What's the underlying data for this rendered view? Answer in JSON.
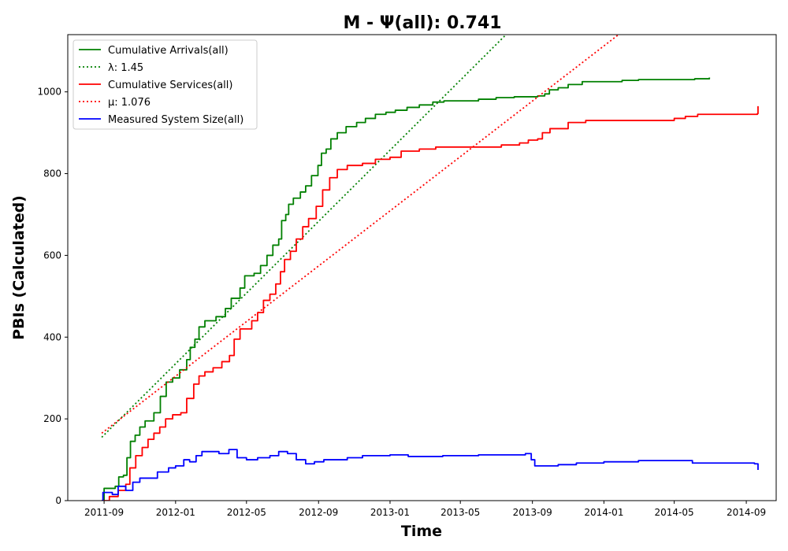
{
  "chart_data": {
    "type": "line",
    "title": "M -  Ψ(all): 0.741",
    "xlabel": "Time",
    "ylabel": "PBIs (Calculated)",
    "x_axis_type": "date",
    "xlim": [
      "2011-07-01",
      "2014-10-22"
    ],
    "ylim": [
      0,
      1140
    ],
    "x_ticks": [
      "2011-09",
      "2012-01",
      "2012-05",
      "2012-09",
      "2013-01",
      "2013-05",
      "2013-09",
      "2014-01",
      "2014-05",
      "2014-09"
    ],
    "x_tick_dates": [
      "2011-09-01",
      "2012-01-01",
      "2012-05-01",
      "2012-09-01",
      "2013-01-01",
      "2013-05-01",
      "2013-09-01",
      "2014-01-01",
      "2014-05-01",
      "2014-09-01"
    ],
    "y_ticks": [
      0,
      200,
      400,
      600,
      800,
      1000
    ],
    "grid": false,
    "legend_position": "top-left",
    "series": [
      {
        "name": "Cumulative Arrivals(all)",
        "color": "#008000",
        "style": "solid",
        "points": [
          [
            "2011-08-28",
            0
          ],
          [
            "2011-09-01",
            30
          ],
          [
            "2011-09-20",
            35
          ],
          [
            "2011-09-26",
            58
          ],
          [
            "2011-10-04",
            62
          ],
          [
            "2011-10-10",
            105
          ],
          [
            "2011-10-16",
            145
          ],
          [
            "2011-10-24",
            160
          ],
          [
            "2011-11-01",
            180
          ],
          [
            "2011-11-10",
            195
          ],
          [
            "2011-11-25",
            215
          ],
          [
            "2011-12-06",
            255
          ],
          [
            "2011-12-16",
            290
          ],
          [
            "2011-12-27",
            300
          ],
          [
            "2012-01-08",
            320
          ],
          [
            "2012-01-20",
            345
          ],
          [
            "2012-01-26",
            375
          ],
          [
            "2012-02-03",
            395
          ],
          [
            "2012-02-10",
            425
          ],
          [
            "2012-02-20",
            440
          ],
          [
            "2012-03-10",
            450
          ],
          [
            "2012-03-26",
            470
          ],
          [
            "2012-04-05",
            495
          ],
          [
            "2012-04-20",
            520
          ],
          [
            "2012-04-28",
            550
          ],
          [
            "2012-05-14",
            556
          ],
          [
            "2012-05-25",
            575
          ],
          [
            "2012-06-05",
            600
          ],
          [
            "2012-06-15",
            625
          ],
          [
            "2012-06-25",
            640
          ],
          [
            "2012-06-30",
            685
          ],
          [
            "2012-07-07",
            700
          ],
          [
            "2012-07-12",
            725
          ],
          [
            "2012-07-20",
            740
          ],
          [
            "2012-08-01",
            755
          ],
          [
            "2012-08-10",
            770
          ],
          [
            "2012-08-20",
            795
          ],
          [
            "2012-08-31",
            820
          ],
          [
            "2012-09-06",
            850
          ],
          [
            "2012-09-14",
            860
          ],
          [
            "2012-09-22",
            885
          ],
          [
            "2012-10-03",
            900
          ],
          [
            "2012-10-18",
            915
          ],
          [
            "2012-11-05",
            925
          ],
          [
            "2012-11-20",
            935
          ],
          [
            "2012-12-07",
            945
          ],
          [
            "2012-12-25",
            950
          ],
          [
            "2013-01-10",
            955
          ],
          [
            "2013-01-30",
            962
          ],
          [
            "2013-02-20",
            968
          ],
          [
            "2013-03-15",
            975
          ],
          [
            "2013-04-03",
            978
          ],
          [
            "2013-06-01",
            982
          ],
          [
            "2013-07-01",
            986
          ],
          [
            "2013-08-01",
            988
          ],
          [
            "2013-09-10",
            990
          ],
          [
            "2013-09-22",
            995
          ],
          [
            "2013-09-30",
            1005
          ],
          [
            "2013-10-15",
            1010
          ],
          [
            "2013-11-01",
            1018
          ],
          [
            "2013-11-25",
            1025
          ],
          [
            "2014-02-01",
            1028
          ],
          [
            "2014-03-01",
            1030
          ],
          [
            "2014-06-05",
            1032
          ],
          [
            "2014-06-30",
            1035
          ]
        ]
      },
      {
        "name": "λ: 1.45",
        "color": "#008000",
        "style": "dotted",
        "points": [
          [
            "2011-08-28",
            155
          ],
          [
            "2013-07-18",
            1140
          ]
        ]
      },
      {
        "name": "Cumulative Services(all)",
        "color": "#ff0000",
        "style": "solid",
        "points": [
          [
            "2011-08-28",
            0
          ],
          [
            "2011-09-10",
            10
          ],
          [
            "2011-09-25",
            25
          ],
          [
            "2011-10-08",
            40
          ],
          [
            "2011-10-15",
            80
          ],
          [
            "2011-10-25",
            110
          ],
          [
            "2011-11-05",
            130
          ],
          [
            "2011-11-15",
            150
          ],
          [
            "2011-11-25",
            165
          ],
          [
            "2011-12-05",
            180
          ],
          [
            "2011-12-15",
            200
          ],
          [
            "2011-12-27",
            210
          ],
          [
            "2012-01-10",
            215
          ],
          [
            "2012-01-20",
            250
          ],
          [
            "2012-02-01",
            285
          ],
          [
            "2012-02-10",
            305
          ],
          [
            "2012-02-20",
            315
          ],
          [
            "2012-03-05",
            325
          ],
          [
            "2012-03-20",
            340
          ],
          [
            "2012-04-02",
            355
          ],
          [
            "2012-04-10",
            395
          ],
          [
            "2012-04-20",
            420
          ],
          [
            "2012-05-10",
            440
          ],
          [
            "2012-05-20",
            460
          ],
          [
            "2012-05-30",
            490
          ],
          [
            "2012-06-10",
            505
          ],
          [
            "2012-06-20",
            530
          ],
          [
            "2012-06-28",
            560
          ],
          [
            "2012-07-05",
            590
          ],
          [
            "2012-07-15",
            610
          ],
          [
            "2012-07-25",
            640
          ],
          [
            "2012-08-05",
            670
          ],
          [
            "2012-08-15",
            690
          ],
          [
            "2012-08-28",
            720
          ],
          [
            "2012-09-08",
            760
          ],
          [
            "2012-09-20",
            790
          ],
          [
            "2012-10-03",
            810
          ],
          [
            "2012-10-20",
            820
          ],
          [
            "2012-11-15",
            825
          ],
          [
            "2012-12-07",
            835
          ],
          [
            "2013-01-01",
            840
          ],
          [
            "2013-01-20",
            855
          ],
          [
            "2013-02-20",
            860
          ],
          [
            "2013-03-20",
            865
          ],
          [
            "2013-07-10",
            870
          ],
          [
            "2013-08-10",
            875
          ],
          [
            "2013-08-25",
            882
          ],
          [
            "2013-09-10",
            885
          ],
          [
            "2013-09-18",
            900
          ],
          [
            "2013-10-01",
            910
          ],
          [
            "2013-11-01",
            925
          ],
          [
            "2013-12-01",
            930
          ],
          [
            "2014-05-01",
            935
          ],
          [
            "2014-05-20",
            940
          ],
          [
            "2014-06-10",
            945
          ],
          [
            "2014-09-20",
            947
          ],
          [
            "2014-09-21",
            965
          ]
        ]
      },
      {
        "name": "μ: 1.076",
        "color": "#ff0000",
        "style": "dotted",
        "points": [
          [
            "2011-08-28",
            165
          ],
          [
            "2014-01-26",
            1140
          ]
        ]
      },
      {
        "name": "Measured System Size(all)",
        "color": "#0000ff",
        "style": "solid",
        "points": [
          [
            "2011-08-28",
            0
          ],
          [
            "2011-08-30",
            20
          ],
          [
            "2011-09-15",
            15
          ],
          [
            "2011-09-25",
            35
          ],
          [
            "2011-10-08",
            25
          ],
          [
            "2011-10-20",
            45
          ],
          [
            "2011-11-01",
            55
          ],
          [
            "2011-11-20",
            55
          ],
          [
            "2011-12-01",
            70
          ],
          [
            "2011-12-20",
            80
          ],
          [
            "2012-01-01",
            85
          ],
          [
            "2012-01-15",
            100
          ],
          [
            "2012-01-25",
            95
          ],
          [
            "2012-02-05",
            110
          ],
          [
            "2012-02-15",
            120
          ],
          [
            "2012-03-15",
            115
          ],
          [
            "2012-04-01",
            125
          ],
          [
            "2012-04-15",
            105
          ],
          [
            "2012-05-01",
            100
          ],
          [
            "2012-05-20",
            105
          ],
          [
            "2012-06-10",
            110
          ],
          [
            "2012-06-25",
            120
          ],
          [
            "2012-07-10",
            115
          ],
          [
            "2012-07-25",
            100
          ],
          [
            "2012-08-10",
            90
          ],
          [
            "2012-08-25",
            95
          ],
          [
            "2012-09-10",
            100
          ],
          [
            "2012-10-01",
            100
          ],
          [
            "2012-10-20",
            105
          ],
          [
            "2012-11-15",
            110
          ],
          [
            "2013-01-01",
            112
          ],
          [
            "2013-02-01",
            108
          ],
          [
            "2013-04-01",
            110
          ],
          [
            "2013-06-01",
            112
          ],
          [
            "2013-08-20",
            115
          ],
          [
            "2013-08-30",
            100
          ],
          [
            "2013-09-05",
            85
          ],
          [
            "2013-10-15",
            88
          ],
          [
            "2013-11-15",
            92
          ],
          [
            "2014-01-01",
            95
          ],
          [
            "2014-03-01",
            98
          ],
          [
            "2014-06-01",
            92
          ],
          [
            "2014-09-15",
            90
          ],
          [
            "2014-09-21",
            75
          ]
        ]
      }
    ]
  }
}
